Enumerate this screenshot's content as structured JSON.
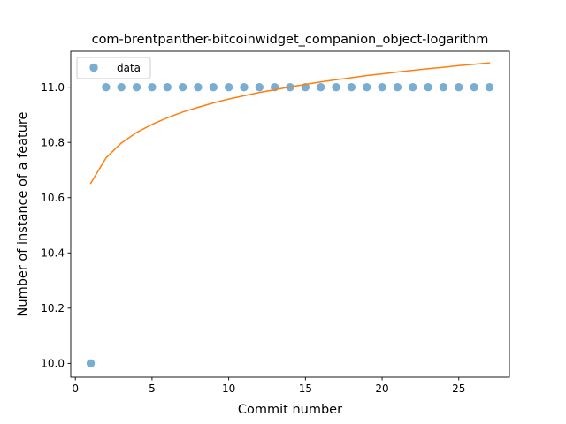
{
  "chart_data": {
    "type": "scatter",
    "title": "com-brentpanther-bitcoinwidget_companion_object-logarithm",
    "xlabel": "Commit number",
    "ylabel": "Number of instance of a feature",
    "xlim": [
      -0.3,
      28.3
    ],
    "ylim": [
      9.95,
      11.13
    ],
    "xticks": [
      0,
      5,
      10,
      15,
      20,
      25
    ],
    "yticks": [
      10.0,
      10.2,
      10.4,
      10.6,
      10.8,
      11.0
    ],
    "ytick_labels": [
      "10.0",
      "10.2",
      "10.4",
      "10.6",
      "10.8",
      "11.0"
    ],
    "grid": false,
    "legend": {
      "placement": "top-left",
      "entries": [
        "data"
      ]
    },
    "series": [
      {
        "name": "data",
        "kind": "scatter",
        "color": "#1f77b4",
        "alpha": 0.6,
        "x": [
          1,
          2,
          3,
          4,
          5,
          6,
          7,
          8,
          9,
          10,
          11,
          12,
          13,
          14,
          15,
          16,
          17,
          18,
          19,
          20,
          21,
          22,
          23,
          24,
          25,
          26,
          27
        ],
        "y": [
          10.0,
          11.0,
          11.0,
          11.0,
          11.0,
          11.0,
          11.0,
          11.0,
          11.0,
          11.0,
          11.0,
          11.0,
          11.0,
          11.0,
          11.0,
          11.0,
          11.0,
          11.0,
          11.0,
          11.0,
          11.0,
          11.0,
          11.0,
          11.0,
          11.0,
          11.0,
          11.0
        ]
      },
      {
        "kind": "line",
        "color": "#ff7f0e",
        "x": [
          1,
          2,
          3,
          4,
          5,
          6,
          7,
          8,
          9,
          10,
          11,
          12,
          13,
          14,
          15,
          16,
          17,
          18,
          19,
          20,
          21,
          22,
          23,
          24,
          25,
          26,
          27
        ],
        "y": [
          10.652,
          10.744,
          10.798,
          10.836,
          10.865,
          10.889,
          10.91,
          10.927,
          10.943,
          10.957,
          10.969,
          10.981,
          10.991,
          11.001,
          11.01,
          11.019,
          11.027,
          11.034,
          11.042,
          11.048,
          11.055,
          11.061,
          11.067,
          11.072,
          11.078,
          11.083,
          11.088
        ]
      }
    ]
  }
}
